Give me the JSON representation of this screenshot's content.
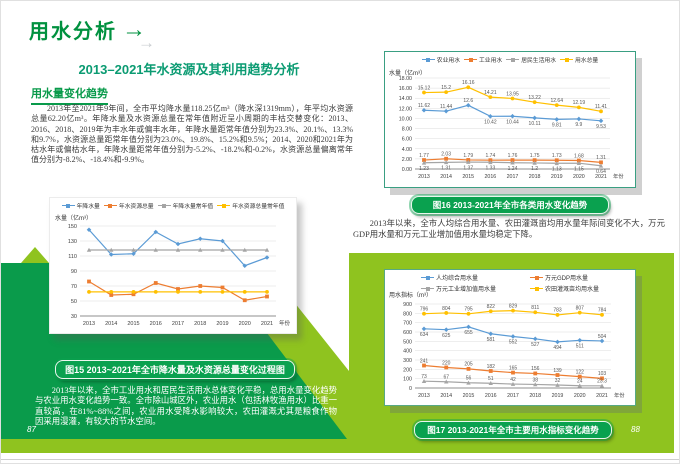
{
  "page": {
    "left": {
      "page_number": "87",
      "title": "用水分析",
      "subtitle": "2013–2021年水资源及其利用趋势分析",
      "section_label": "用水量变化趋势",
      "paragraph1": "2013年至2021年9年间，全市平均降水量118.25亿m³（降水深1319mm），年平均水资源总量62.20亿m³。年降水量及水资源总量在常年值附近呈小周期的丰枯交替变化：2013、2016、2018、2019年为丰水年或偏丰水年，年降水量距常年值分别为23.3%、20.1%、13.3%和9.7%，水资源总量距常年值分别为23.0%、19.8%、15.2%和9.5%；2014、2020和2021年为枯水年或偏枯水年，年降水量距常年值分别为-5.2%、-18.2%和-0.2%，水资源总量偏离常年值分别为-8.2%、-18.4%和-9.9%。",
      "caption": "图15 2013~2021年全市降水量及水资源总量变化过程图",
      "paragraph2": "2013年以来，全市工业用水和居民生活用水总体变化平稳，总用水量变化趋势与农业用水变化趋势一致。全市除山城区外，农业用水（包括林牧渔用水）比重一直较高，在81%~88%之间，农业用水受降水影响较大，农田灌溉尤其是粮食作物因采用漫灌，有较大的节水空间。"
    },
    "right": {
      "page_number": "88",
      "caption_top": "图16 2013-2021年全市各类用水变化趋势",
      "paragraph": "2013年以来，全市人均综合用水量、农田灌溉亩均用水量年际间变化不大，万元GDP用水量和万元工业增加值用水量均稳定下降。",
      "caption_bottom": "图17 2013-2021年全市主要用水指标变化趋势"
    }
  },
  "icons": {
    "arrow_right": "→",
    "arrow_right_ghost": "→"
  },
  "colors": {
    "dark_green": "#0a9b4b",
    "lime_green": "#8fc31f",
    "title_green": "#00913f",
    "subtitle_teal": "#0b9b72",
    "caption_bg": "#0aa14f",
    "series_blue": "#5B9BD5",
    "series_orange": "#ED7D31",
    "series_gray": "#A5A5A5",
    "series_yellow": "#FFC000"
  },
  "chart_data": [
    {
      "type": "line",
      "title": "图15 2013~2021年全市降水量及水资源总量变化过程图",
      "ylabel": "水量（亿m³）",
      "xlabel": "年份",
      "grid": true,
      "legend_position": "top",
      "categories": [
        "2013",
        "2014",
        "2015",
        "2016",
        "2017",
        "2018",
        "2019",
        "2020",
        "2021"
      ],
      "ylim": [
        30,
        150
      ],
      "ytick_step": 20,
      "ytick_format": "int",
      "show_point_labels": false,
      "series": [
        {
          "name": "年降水量",
          "color": "#5B9BD5",
          "values": [
            145,
            112,
            113,
            142,
            126,
            133,
            130,
            97,
            108
          ]
        },
        {
          "name": "年水资源总量",
          "color": "#ED7D31",
          "values": [
            76,
            58,
            59,
            74,
            66,
            70,
            68,
            51,
            56
          ]
        },
        {
          "name": "年降水量常年值",
          "color": "#A5A5A5",
          "values": [
            118,
            118,
            118,
            118,
            118,
            118,
            118,
            118,
            118
          ]
        },
        {
          "name": "年水资源总量常年值",
          "color": "#FFC000",
          "values": [
            62.2,
            62.2,
            62.2,
            62.2,
            62.2,
            62.2,
            62.2,
            62.2,
            62.2
          ]
        }
      ]
    },
    {
      "type": "line",
      "title": "图16 2013-2021年全市各类用水变化趋势",
      "ylabel": "水量（亿m³）",
      "xlabel": "年份",
      "grid": true,
      "legend_position": "top",
      "categories": [
        "2013",
        "2014",
        "2015",
        "2016",
        "2017",
        "2018",
        "2019",
        "2020",
        "2021"
      ],
      "ylim": [
        0,
        18
      ],
      "ytick_step": 2,
      "ytick_format": "2dp",
      "show_point_labels": true,
      "series": [
        {
          "name": "农业用水",
          "color": "#5B9BD5",
          "values": [
            11.62,
            11.44,
            12.6,
            10.42,
            10.44,
            10.11,
            9.81,
            9.9,
            9.53
          ],
          "label_sides": [
            "a",
            "a",
            "a",
            "b",
            "b",
            "b",
            "b",
            "b",
            "b"
          ]
        },
        {
          "name": "工业用水",
          "color": "#ED7D31",
          "values": [
            1.77,
            2.03,
            1.79,
            1.74,
            1.76,
            1.75,
            1.73,
            1.68,
            1.31
          ],
          "label_sides": [
            "a",
            "a",
            "a",
            "a",
            "a",
            "a",
            "a",
            "a",
            "a"
          ]
        },
        {
          "name": "居民生活用水",
          "color": "#A5A5A5",
          "values": [
            1.23,
            1.31,
            1.37,
            1.33,
            1.24,
            1.2,
            1.13,
            1.15,
            0.64
          ],
          "label_sides": [
            "b",
            "b",
            "b",
            "b",
            "b",
            "b",
            "b",
            "b",
            "b"
          ]
        },
        {
          "name": "用水总量",
          "color": "#FFC000",
          "values": [
            15.12,
            15.2,
            16.16,
            14.21,
            13.95,
            13.22,
            12.64,
            12.19,
            11.41
          ],
          "label_sides": [
            "a",
            "a",
            "a",
            "a",
            "a",
            "a",
            "a",
            "a",
            "a"
          ]
        }
      ]
    },
    {
      "type": "line",
      "title": "图17 2013-2021年全市主要用水指标变化趋势",
      "ylabel": "用水指标（m³）",
      "xlabel": "年份",
      "grid": true,
      "legend_position": "top",
      "categories": [
        "2013",
        "2014",
        "2015",
        "2016",
        "2017",
        "2018",
        "2019",
        "2020",
        "2021"
      ],
      "ylim": [
        0,
        900
      ],
      "ytick_step": 100,
      "ytick_format": "int",
      "show_point_labels": true,
      "series": [
        {
          "name": "人均综合用水量",
          "color": "#5B9BD5",
          "values": [
            634,
            625,
            655,
            581,
            552,
            527,
            494,
            511,
            504
          ],
          "label_sides": [
            "b",
            "b",
            "b",
            "b",
            "b",
            "b",
            "b",
            "b",
            "a"
          ]
        },
        {
          "name": "万元GDP用水量",
          "color": "#ED7D31",
          "values": [
            241,
            220,
            205,
            182,
            165,
            156,
            139,
            122,
            103
          ],
          "label_sides": [
            "a",
            "a",
            "a",
            "a",
            "a",
            "a",
            "a",
            "a",
            "a"
          ]
        },
        {
          "name": "万元工业增加值用水量",
          "color": "#A5A5A5",
          "values": [
            73,
            67,
            56,
            51,
            42,
            38,
            32,
            24,
            23.3
          ],
          "label_sides": [
            "a",
            "a",
            "a",
            "a",
            "a",
            "a",
            "a",
            "a",
            "a"
          ]
        },
        {
          "name": "农田灌溉亩均用水量",
          "color": "#FFC000",
          "values": [
            796,
            804,
            795,
            822,
            829,
            811,
            783,
            807,
            784
          ],
          "label_sides": [
            "a",
            "a",
            "a",
            "a",
            "a",
            "a",
            "a",
            "a",
            "a"
          ]
        }
      ]
    }
  ]
}
